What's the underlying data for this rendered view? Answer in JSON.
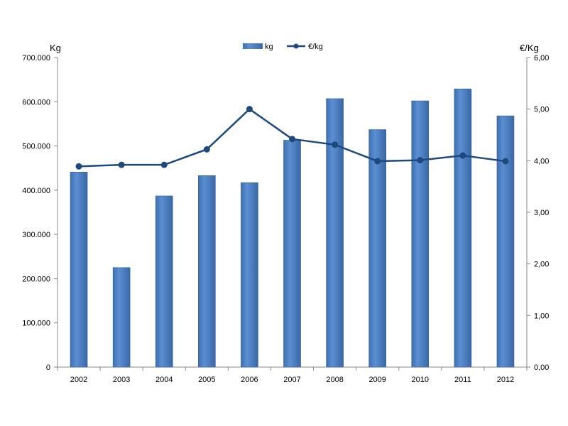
{
  "chart_data": {
    "type": "bar+line",
    "categories": [
      "2002",
      "2003",
      "2004",
      "2005",
      "2006",
      "2007",
      "2008",
      "2009",
      "2010",
      "2011",
      "2012"
    ],
    "series": [
      {
        "name": "kg",
        "type": "bar",
        "axis": "left",
        "values": [
          441000,
          225000,
          387000,
          433000,
          417000,
          513000,
          607000,
          537000,
          602000,
          629000,
          568000
        ]
      },
      {
        "name": "€/kg",
        "type": "line",
        "axis": "right",
        "values": [
          3.89,
          3.92,
          3.92,
          4.22,
          5.0,
          4.42,
          4.31,
          3.99,
          4.01,
          4.1,
          3.99
        ]
      }
    ],
    "left_axis": {
      "unit_label": "Kg",
      "min": 0,
      "max": 700000,
      "step": 100000,
      "tick_labels": [
        "0",
        "100.000",
        "200.000",
        "300.000",
        "400.000",
        "500.000",
        "600.000",
        "700.000"
      ]
    },
    "right_axis": {
      "unit_label": "€/Kg",
      "min": 0,
      "max": 6,
      "step": 1,
      "tick_labels": [
        "0,00",
        "1,00",
        "2,00",
        "3,00",
        "4,00",
        "5,00",
        "6,00"
      ]
    },
    "legend": {
      "position": "top-center",
      "items": [
        "kg",
        "€/kg"
      ]
    },
    "grid": false,
    "colors": {
      "bar": "#4f81c4",
      "bar_dark": "#365f98",
      "line": "#1f497d",
      "axis": "#888888"
    }
  }
}
